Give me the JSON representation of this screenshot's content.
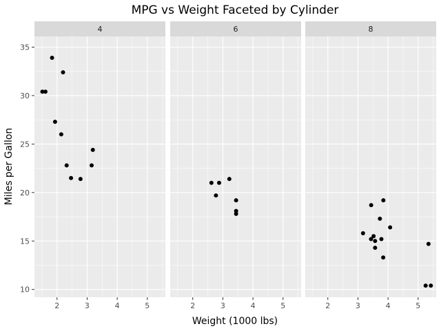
{
  "chart_data": {
    "type": "scatter",
    "title": "MPG vs Weight Faceted by Cylinder",
    "xlabel": "Weight (1000 lbs)",
    "ylabel": "Miles per Gallon",
    "xlim": [
      1.25,
      5.6
    ],
    "ylim": [
      9.2,
      36.1
    ],
    "x_ticks": [
      2,
      3,
      4,
      5
    ],
    "y_ticks": [
      10,
      15,
      20,
      25,
      30,
      35
    ],
    "grid": true,
    "point_color": "#000000",
    "panel_background": "#ebebeb",
    "strip_background": "#d9d9d9",
    "grid_color": "#ffffff",
    "facets": [
      {
        "label": "4",
        "points": [
          {
            "x": 1.615,
            "y": 30.4
          },
          {
            "x": 1.513,
            "y": 30.4
          },
          {
            "x": 1.835,
            "y": 33.9
          },
          {
            "x": 2.2,
            "y": 32.4
          },
          {
            "x": 1.935,
            "y": 27.3
          },
          {
            "x": 2.14,
            "y": 26.0
          },
          {
            "x": 3.19,
            "y": 24.4
          },
          {
            "x": 2.32,
            "y": 22.8
          },
          {
            "x": 3.15,
            "y": 22.8
          },
          {
            "x": 2.465,
            "y": 21.5
          },
          {
            "x": 2.78,
            "y": 21.4
          }
        ]
      },
      {
        "label": "6",
        "points": [
          {
            "x": 3.215,
            "y": 21.4
          },
          {
            "x": 2.62,
            "y": 21.0
          },
          {
            "x": 2.875,
            "y": 21.0
          },
          {
            "x": 2.77,
            "y": 19.7
          },
          {
            "x": 3.44,
            "y": 19.2
          },
          {
            "x": 3.44,
            "y": 18.1
          },
          {
            "x": 3.44,
            "y": 17.8
          }
        ]
      },
      {
        "label": "8",
        "points": [
          {
            "x": 3.845,
            "y": 19.2
          },
          {
            "x": 3.44,
            "y": 18.7
          },
          {
            "x": 3.73,
            "y": 17.3
          },
          {
            "x": 4.07,
            "y": 16.4
          },
          {
            "x": 3.17,
            "y": 15.8
          },
          {
            "x": 3.52,
            "y": 15.5
          },
          {
            "x": 3.435,
            "y": 15.2
          },
          {
            "x": 3.78,
            "y": 15.2
          },
          {
            "x": 3.57,
            "y": 15.0
          },
          {
            "x": 3.57,
            "y": 14.3
          },
          {
            "x": 3.84,
            "y": 13.3
          },
          {
            "x": 5.345,
            "y": 14.7
          },
          {
            "x": 5.25,
            "y": 10.4
          },
          {
            "x": 5.424,
            "y": 10.4
          }
        ]
      }
    ]
  }
}
